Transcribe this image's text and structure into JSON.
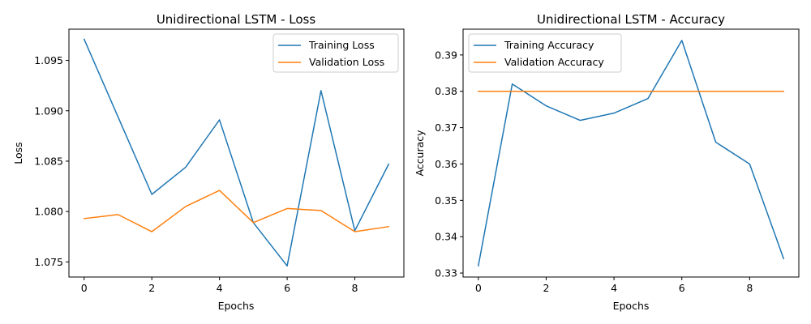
{
  "chart_data": [
    {
      "type": "line",
      "title": "Unidirectional LSTM - Loss",
      "xlabel": "Epochs",
      "ylabel": "Loss",
      "x": [
        0,
        1,
        2,
        3,
        4,
        5,
        6,
        7,
        8,
        9
      ],
      "xlim": [
        -0.45,
        9.45
      ],
      "ylim": [
        1.0735,
        1.0981
      ],
      "xticks": [
        0,
        2,
        4,
        6,
        8
      ],
      "xtick_labels": [
        "0",
        "2",
        "4",
        "6",
        "8"
      ],
      "yticks": [
        1.075,
        1.08,
        1.085,
        1.09,
        1.095
      ],
      "ytick_labels": [
        "1.075",
        "1.080",
        "1.085",
        "1.090",
        "1.095"
      ],
      "legend": "top-right",
      "grid": false,
      "series": [
        {
          "name": "Training Loss",
          "color": "#1f77b4",
          "values": [
            1.0971,
            1.0894,
            1.0817,
            1.0844,
            1.0891,
            1.0789,
            1.0746,
            1.092,
            1.0781,
            1.0847
          ]
        },
        {
          "name": "Validation Loss",
          "color": "#ff7f0e",
          "values": [
            1.0793,
            1.0797,
            1.078,
            1.0805,
            1.0821,
            1.0789,
            1.0803,
            1.0801,
            1.078,
            1.0785
          ]
        }
      ]
    },
    {
      "type": "line",
      "title": "Unidirectional LSTM - Accuracy",
      "xlabel": "Epochs",
      "ylabel": "Accuracy",
      "x": [
        0,
        1,
        2,
        3,
        4,
        5,
        6,
        7,
        8,
        9
      ],
      "xlim": [
        -0.45,
        9.45
      ],
      "ylim": [
        0.3289,
        0.3971
      ],
      "xticks": [
        0,
        2,
        4,
        6,
        8
      ],
      "xtick_labels": [
        "0",
        "2",
        "4",
        "6",
        "8"
      ],
      "yticks": [
        0.33,
        0.34,
        0.35,
        0.36,
        0.37,
        0.38,
        0.39
      ],
      "ytick_labels": [
        "0.33",
        "0.34",
        "0.35",
        "0.36",
        "0.37",
        "0.38",
        "0.39"
      ],
      "legend": "top-left",
      "grid": false,
      "series": [
        {
          "name": "Training Accuracy",
          "color": "#1f77b4",
          "values": [
            0.332,
            0.382,
            0.376,
            0.372,
            0.374,
            0.378,
            0.394,
            0.366,
            0.36,
            0.334
          ]
        },
        {
          "name": "Validation Accuracy",
          "color": "#ff7f0e",
          "values": [
            0.38,
            0.38,
            0.38,
            0.38,
            0.38,
            0.38,
            0.38,
            0.38,
            0.38,
            0.38
          ]
        }
      ]
    }
  ]
}
